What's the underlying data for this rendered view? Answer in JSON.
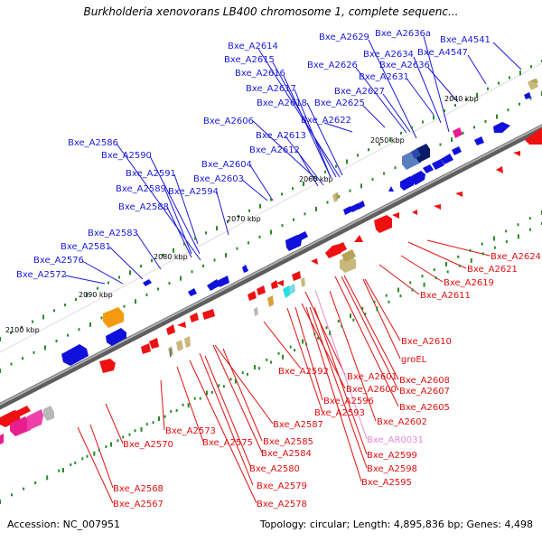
{
  "title": "Burkholderia xenovorans LB400 chromosome 1, complete sequenc...",
  "footer": {
    "accession": "Accession: NC_007951",
    "topology": "Topology: circular; Length: 4,895,836 bp; Genes: 4,498"
  },
  "colors": {
    "forward": "#1010dd",
    "reverse": "#ee1111",
    "pink_label": "#e58bd0",
    "chromosome": "#7a7a7a",
    "tick": "#2a8a2a"
  },
  "scale_labels": [
    "2040 kbp",
    "2050 kbp",
    "2060 kbp",
    "2070 kbp",
    "2080 kbp",
    "2090 kbp",
    "2100 kbp"
  ],
  "top_labels": [
    "Bxe_A2629",
    "Bxe_A2636a",
    "Bxe_A4541",
    "Bxe_A2614",
    "Bxe_A2634",
    "Bxe_A4547",
    "Bxe_A2615",
    "Bxe_A2626",
    "Bxe_A2636",
    "Bxe_A2616",
    "Bxe_A2631",
    "Bxe_A2617",
    "Bxe_A2627",
    "Bxe_A2618",
    "Bxe_A2625",
    "Bxe_A2622",
    "Bxe_A2606",
    "Bxe_A2613",
    "Bxe_A2586",
    "Bxe_A2612",
    "Bxe_A2590",
    "Bxe_A2604",
    "Bxe_A2591",
    "Bxe_A2603",
    "Bxe_A2589",
    "Bxe_A2594",
    "Bxe_A2588",
    "Bxe_A2583",
    "Bxe_A2581",
    "Bxe_A2576",
    "Bxe_A2572"
  ],
  "bottom_labels": [
    "Bxe_A2624",
    "Bxe_A2621",
    "Bxe_A2619",
    "Bxe_A2611",
    "Bxe_A2610",
    "groEL",
    "Bxe_A2592",
    "Bxe_A2601",
    "Bxe_A2608",
    "Bxe_A2600",
    "Bxe_A2607",
    "Bxe_A2596",
    "Bxe_A2605",
    "Bxe_A2593",
    "Bxe_A2602",
    "Bxe_A2587",
    "Bxe_AR0031",
    "Bxe_A2573",
    "Bxe_A2585",
    "Bxe_A2575",
    "Bxe_A2570",
    "Bxe_A2584",
    "Bxe_A2599",
    "Bxe_A2598",
    "Bxe_A2580",
    "Bxe_A2595",
    "Bxe_A2579",
    "Bxe_A2568",
    "Bxe_A2578",
    "Bxe_A2567"
  ]
}
